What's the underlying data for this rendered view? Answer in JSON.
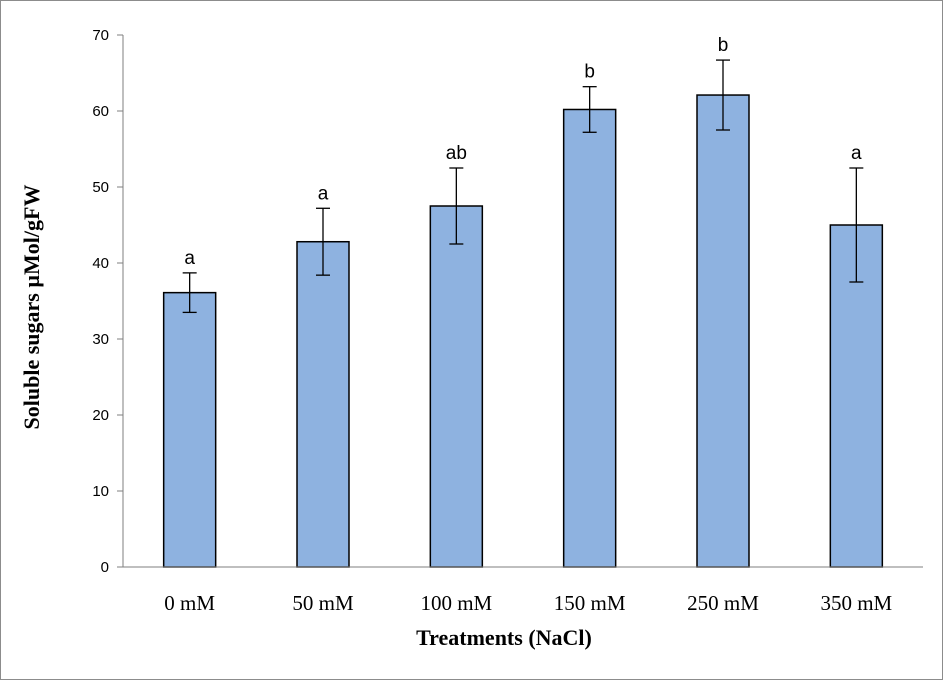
{
  "chart_data": {
    "type": "bar",
    "categories": [
      "0 mM",
      "50 mM",
      "100 mM",
      "150 mM",
      "250 mM",
      "350 mM"
    ],
    "values": [
      36.1,
      42.8,
      47.5,
      60.2,
      62.1,
      45.0
    ],
    "error": [
      2.6,
      4.4,
      5.0,
      3.0,
      4.6,
      7.5
    ],
    "significance": [
      "a",
      "a",
      "ab",
      "b",
      "b",
      "a"
    ],
    "xlabel": "Treatments (NaCl)",
    "ylabel": "Soluble sugars µMol/gFW",
    "ylim": [
      0,
      70
    ],
    "yticks": [
      "0",
      "10",
      "20",
      "30",
      "40",
      "50",
      "60",
      "70"
    ],
    "grid": false,
    "bar_color": "#8eb2e0",
    "bar_edge_color": "#000000"
  }
}
